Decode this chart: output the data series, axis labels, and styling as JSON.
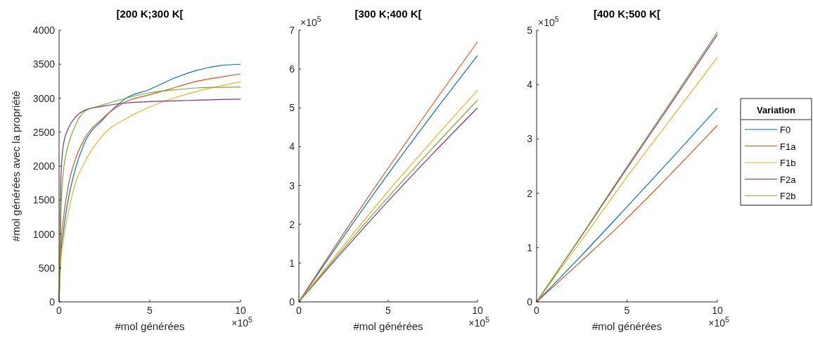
{
  "chart_data": [
    {
      "type": "line",
      "title": "[200 K;300 K[",
      "xlabel": "#mol générées",
      "ylabel": "#mol générées avec la propriété",
      "annotations": [
        "×10$^{5}$"
      ],
      "xlim": [
        0,
        10
      ],
      "xticks": [
        0,
        5,
        10
      ],
      "ylim": [
        0,
        4000
      ],
      "yticks": [
        0,
        500,
        1000,
        1500,
        2000,
        2500,
        3000,
        3500,
        4000
      ],
      "grid": false,
      "legend": false,
      "x": [
        0,
        0.1,
        0.23,
        0.5,
        0.9,
        1.4,
        2.4,
        3.7,
        5,
        6.3,
        7.6,
        8.9,
        10
      ],
      "series": [
        {
          "color": "#0072bd",
          "values": [
            0,
            700,
            1020,
            1500,
            1960,
            2340,
            2680,
            3000,
            3130,
            3290,
            3410,
            3480,
            3500
          ]
        },
        {
          "color": "#d95319",
          "values": [
            0,
            850,
            1200,
            1700,
            2100,
            2400,
            2700,
            2950,
            3050,
            3150,
            3250,
            3310,
            3360
          ]
        },
        {
          "color": "#edb120",
          "values": [
            0,
            600,
            900,
            1300,
            1750,
            2050,
            2450,
            2700,
            2870,
            3000,
            3100,
            3180,
            3240
          ]
        },
        {
          "color": "#7e2f8e",
          "values": [
            0,
            1800,
            2300,
            2550,
            2720,
            2820,
            2880,
            2930,
            2950,
            2960,
            2970,
            2980,
            2985
          ]
        },
        {
          "color": "#77ac30",
          "values": [
            0,
            1300,
            1900,
            2300,
            2600,
            2800,
            2900,
            3000,
            3080,
            3120,
            3150,
            3160,
            3165
          ]
        }
      ]
    },
    {
      "type": "line",
      "title": "[300 K;400 K[",
      "xlabel": "#mol générées",
      "annotations": [
        "×10$^{5}$",
        "×10$^{5}$"
      ],
      "xlim": [
        0,
        10
      ],
      "xticks": [
        0,
        5,
        10
      ],
      "ylim": [
        0,
        7
      ],
      "yticks": [
        0,
        1,
        2,
        3,
        4,
        5,
        6,
        7
      ],
      "grid": false,
      "legend": false,
      "x": [
        0,
        2.5,
        5,
        7.5,
        10
      ],
      "series": [
        {
          "color": "#0072bd",
          "values": [
            0,
            1.68,
            3.3,
            4.85,
            6.35
          ]
        },
        {
          "color": "#d95319",
          "values": [
            0,
            1.76,
            3.45,
            5.1,
            6.7
          ]
        },
        {
          "color": "#edb120",
          "values": [
            0,
            1.45,
            2.85,
            4.17,
            5.45
          ]
        },
        {
          "color": "#7e2f8e",
          "values": [
            0,
            1.32,
            2.6,
            3.82,
            5.0
          ]
        },
        {
          "color": "#77ac30",
          "values": [
            0,
            1.38,
            2.7,
            3.97,
            5.2
          ]
        }
      ]
    },
    {
      "type": "line",
      "title": "[400 K;500 K[",
      "xlabel": "#mol générées",
      "annotations": [
        "×10$^{5}$",
        "×10$^{5}$"
      ],
      "xlim": [
        0,
        10
      ],
      "xticks": [
        0,
        5,
        10
      ],
      "ylim": [
        0,
        5
      ],
      "yticks": [
        0,
        1,
        2,
        3,
        4,
        5
      ],
      "grid": false,
      "legend": "right",
      "legend_title": "Variation",
      "x": [
        0,
        2.5,
        5,
        7.5,
        10
      ],
      "series": [
        {
          "name": "F0",
          "color": "#0072bd",
          "values": [
            0,
            0.86,
            1.75,
            2.65,
            3.57
          ]
        },
        {
          "name": "F1a",
          "color": "#d95319",
          "values": [
            0,
            0.76,
            1.54,
            2.38,
            3.25
          ]
        },
        {
          "name": "F1b",
          "color": "#edb120",
          "values": [
            0,
            1.14,
            2.3,
            3.4,
            4.5
          ]
        },
        {
          "name": "F2a",
          "color": "#7e2f8e",
          "values": [
            0,
            1.22,
            2.46,
            3.68,
            4.92
          ]
        },
        {
          "name": "F2b",
          "color": "#77ac30",
          "values": [
            0,
            1.23,
            2.49,
            3.72,
            4.97
          ]
        }
      ]
    }
  ]
}
